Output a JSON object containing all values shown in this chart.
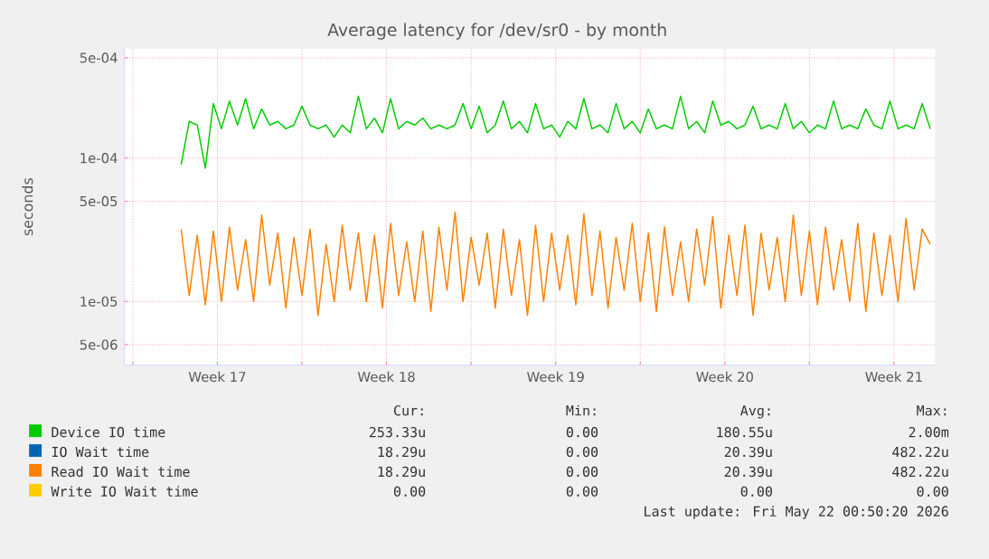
{
  "chart_data": {
    "type": "line",
    "title": "Average latency for /dev/sr0 - by month",
    "ylabel": "seconds",
    "log": "y",
    "grid": true,
    "legend": "bottom",
    "xlim": [
      "2026-04-19T15:36",
      "2026-05-23T04:48"
    ],
    "xticks": [
      {
        "value": "2026-04-20",
        "label": null
      },
      {
        "value": "2026-04-23T12:00",
        "label": "Week 17"
      },
      {
        "value": "2026-04-27",
        "label": null
      },
      {
        "value": "2026-04-30T12:00",
        "label": "Week 18"
      },
      {
        "value": "2026-05-04",
        "label": null
      },
      {
        "value": "2026-05-07T12:00",
        "label": "Week 19"
      },
      {
        "value": "2026-05-11",
        "label": null
      },
      {
        "value": "2026-05-14T12:00",
        "label": "Week 20"
      },
      {
        "value": "2026-05-18",
        "label": null
      },
      {
        "value": "2026-05-21T12:00",
        "label": "Week 21"
      }
    ],
    "ylim": [
      3.6e-06,
      0.00058
    ],
    "yticks": [
      {
        "value": 5e-06,
        "label": "5e-06"
      },
      {
        "value": 1e-05,
        "label": "1e-05"
      },
      {
        "value": 5e-05,
        "label": "5e-05"
      },
      {
        "value": 0.0001,
        "label": "1e-04"
      },
      {
        "value": 0.0005,
        "label": "5e-04"
      }
    ],
    "series": [
      {
        "name": "Device IO time",
        "color": "#00cc00",
        "x": [
          "2026-04-22T00:00",
          "2026-04-22T08:00",
          "2026-04-22T16:00",
          "2026-04-23T00:00",
          "2026-04-23T08:00",
          "2026-04-23T16:00",
          "2026-04-24T00:00",
          "2026-04-24T08:00",
          "2026-04-24T16:00",
          "2026-04-25T00:00",
          "2026-04-25T08:00",
          "2026-04-25T16:00",
          "2026-04-26T00:00",
          "2026-04-26T08:00",
          "2026-04-26T16:00",
          "2026-04-27T00:00",
          "2026-04-27T08:00",
          "2026-04-27T16:00",
          "2026-04-28T00:00",
          "2026-04-28T08:00",
          "2026-04-28T16:00",
          "2026-04-29T00:00",
          "2026-04-29T08:00",
          "2026-04-29T16:00",
          "2026-04-30T00:00",
          "2026-04-30T08:00",
          "2026-04-30T16:00",
          "2026-05-01T00:00",
          "2026-05-01T08:00",
          "2026-05-01T16:00",
          "2026-05-02T00:00",
          "2026-05-02T08:00",
          "2026-05-02T16:00",
          "2026-05-03T00:00",
          "2026-05-03T08:00",
          "2026-05-03T16:00",
          "2026-05-04T00:00",
          "2026-05-04T08:00",
          "2026-05-04T16:00",
          "2026-05-05T00:00",
          "2026-05-05T08:00",
          "2026-05-05T16:00",
          "2026-05-06T00:00",
          "2026-05-06T08:00",
          "2026-05-06T16:00",
          "2026-05-07T00:00",
          "2026-05-07T08:00",
          "2026-05-07T16:00",
          "2026-05-08T00:00",
          "2026-05-08T08:00",
          "2026-05-08T16:00",
          "2026-05-09T00:00",
          "2026-05-09T08:00",
          "2026-05-09T16:00",
          "2026-05-10T00:00",
          "2026-05-10T08:00",
          "2026-05-10T16:00",
          "2026-05-11T00:00",
          "2026-05-11T08:00",
          "2026-05-11T16:00",
          "2026-05-12T00:00",
          "2026-05-12T08:00",
          "2026-05-12T16:00",
          "2026-05-13T00:00",
          "2026-05-13T08:00",
          "2026-05-13T16:00",
          "2026-05-14T00:00",
          "2026-05-14T08:00",
          "2026-05-14T16:00",
          "2026-05-15T00:00",
          "2026-05-15T08:00",
          "2026-05-15T16:00",
          "2026-05-16T00:00",
          "2026-05-16T08:00",
          "2026-05-16T16:00",
          "2026-05-17T00:00",
          "2026-05-17T08:00",
          "2026-05-17T16:00",
          "2026-05-18T00:00",
          "2026-05-18T08:00",
          "2026-05-18T16:00",
          "2026-05-19T00:00",
          "2026-05-19T08:00",
          "2026-05-19T16:00",
          "2026-05-20T00:00",
          "2026-05-20T08:00",
          "2026-05-20T16:00",
          "2026-05-21T00:00",
          "2026-05-21T08:00",
          "2026-05-21T16:00",
          "2026-05-22T00:00",
          "2026-05-22T08:00",
          "2026-05-22T16:00",
          "2026-05-23T00:00"
        ],
        "values": [
          9e-05,
          0.00018,
          0.00017,
          8.5e-05,
          0.00024,
          0.00016,
          0.00025,
          0.00017,
          0.00026,
          0.00016,
          0.00022,
          0.00017,
          0.00018,
          0.00016,
          0.00017,
          0.00023,
          0.00017,
          0.00016,
          0.00017,
          0.00014,
          0.00017,
          0.00015,
          0.00027,
          0.00016,
          0.00019,
          0.00015,
          0.00026,
          0.00016,
          0.00018,
          0.00017,
          0.00019,
          0.00016,
          0.00017,
          0.00016,
          0.00017,
          0.00024,
          0.00016,
          0.00023,
          0.00015,
          0.00017,
          0.00025,
          0.00016,
          0.00018,
          0.00015,
          0.00024,
          0.00016,
          0.00017,
          0.00014,
          0.00018,
          0.00016,
          0.00026,
          0.00016,
          0.00017,
          0.00015,
          0.00024,
          0.00016,
          0.00018,
          0.00015,
          0.00022,
          0.00016,
          0.00017,
          0.00016,
          0.00027,
          0.00016,
          0.00018,
          0.00015,
          0.00025,
          0.00017,
          0.00018,
          0.00016,
          0.00017,
          0.00023,
          0.00016,
          0.00017,
          0.00016,
          0.00024,
          0.00016,
          0.00018,
          0.00015,
          0.00017,
          0.00016,
          0.00025,
          0.00016,
          0.00017,
          0.00016,
          0.00022,
          0.00017,
          0.00016,
          0.00025,
          0.00016,
          0.00017,
          0.00016,
          0.00024,
          0.00016
        ]
      },
      {
        "name": "IO Wait time",
        "color": "#0066b3",
        "values": [
          null
        ]
      },
      {
        "name": "Read IO Wait time",
        "color": "#ff8000",
        "x": [
          "2026-04-22T00:00",
          "2026-04-22T08:00",
          "2026-04-22T16:00",
          "2026-04-23T00:00",
          "2026-04-23T08:00",
          "2026-04-23T16:00",
          "2026-04-24T00:00",
          "2026-04-24T08:00",
          "2026-04-24T16:00",
          "2026-04-25T00:00",
          "2026-04-25T08:00",
          "2026-04-25T16:00",
          "2026-04-26T00:00",
          "2026-04-26T08:00",
          "2026-04-26T16:00",
          "2026-04-27T00:00",
          "2026-04-27T08:00",
          "2026-04-27T16:00",
          "2026-04-28T00:00",
          "2026-04-28T08:00",
          "2026-04-28T16:00",
          "2026-04-29T00:00",
          "2026-04-29T08:00",
          "2026-04-29T16:00",
          "2026-04-30T00:00",
          "2026-04-30T08:00",
          "2026-04-30T16:00",
          "2026-05-01T00:00",
          "2026-05-01T08:00",
          "2026-05-01T16:00",
          "2026-05-02T00:00",
          "2026-05-02T08:00",
          "2026-05-02T16:00",
          "2026-05-03T00:00",
          "2026-05-03T08:00",
          "2026-05-03T16:00",
          "2026-05-04T00:00",
          "2026-05-04T08:00",
          "2026-05-04T16:00",
          "2026-05-05T00:00",
          "2026-05-05T08:00",
          "2026-05-05T16:00",
          "2026-05-06T00:00",
          "2026-05-06T08:00",
          "2026-05-06T16:00",
          "2026-05-07T00:00",
          "2026-05-07T08:00",
          "2026-05-07T16:00",
          "2026-05-08T00:00",
          "2026-05-08T08:00",
          "2026-05-08T16:00",
          "2026-05-09T00:00",
          "2026-05-09T08:00",
          "2026-05-09T16:00",
          "2026-05-10T00:00",
          "2026-05-10T08:00",
          "2026-05-10T16:00",
          "2026-05-11T00:00",
          "2026-05-11T08:00",
          "2026-05-11T16:00",
          "2026-05-12T00:00",
          "2026-05-12T08:00",
          "2026-05-12T16:00",
          "2026-05-13T00:00",
          "2026-05-13T08:00",
          "2026-05-13T16:00",
          "2026-05-14T00:00",
          "2026-05-14T08:00",
          "2026-05-14T16:00",
          "2026-05-15T00:00",
          "2026-05-15T08:00",
          "2026-05-15T16:00",
          "2026-05-16T00:00",
          "2026-05-16T08:00",
          "2026-05-16T16:00",
          "2026-05-17T00:00",
          "2026-05-17T08:00",
          "2026-05-17T16:00",
          "2026-05-18T00:00",
          "2026-05-18T08:00",
          "2026-05-18T16:00",
          "2026-05-19T00:00",
          "2026-05-19T08:00",
          "2026-05-19T16:00",
          "2026-05-20T00:00",
          "2026-05-20T08:00",
          "2026-05-20T16:00",
          "2026-05-21T00:00",
          "2026-05-21T08:00",
          "2026-05-21T16:00",
          "2026-05-22T00:00",
          "2026-05-22T08:00",
          "2026-05-22T16:00",
          "2026-05-23T00:00"
        ],
        "values": [
          3.2e-05,
          1.1e-05,
          2.9e-05,
          9.5e-06,
          3.1e-05,
          1e-05,
          3.3e-05,
          1.2e-05,
          2.7e-05,
          1e-05,
          4e-05,
          1.3e-05,
          3e-05,
          9e-06,
          2.8e-05,
          1.1e-05,
          3.2e-05,
          8e-06,
          2.5e-05,
          1e-05,
          3.4e-05,
          1.2e-05,
          3e-05,
          1e-05,
          2.9e-05,
          9e-06,
          3.5e-05,
          1.1e-05,
          2.6e-05,
          1e-05,
          3.1e-05,
          8.5e-06,
          3.3e-05,
          1.2e-05,
          4.2e-05,
          1e-05,
          2.8e-05,
          1.3e-05,
          3e-05,
          9e-06,
          3.2e-05,
          1.1e-05,
          2.7e-05,
          8e-06,
          3.4e-05,
          1e-05,
          3e-05,
          1.2e-05,
          2.9e-05,
          9.5e-06,
          4.1e-05,
          1.1e-05,
          3.1e-05,
          9e-06,
          2.8e-05,
          1.2e-05,
          3.5e-05,
          1e-05,
          3e-05,
          8.5e-06,
          3.3e-05,
          1.1e-05,
          2.6e-05,
          1e-05,
          3.2e-05,
          1.3e-05,
          3.9e-05,
          9e-06,
          2.9e-05,
          1.1e-05,
          3.4e-05,
          8e-06,
          3e-05,
          1.2e-05,
          2.8e-05,
          1e-05,
          4e-05,
          1.1e-05,
          3.1e-05,
          9.5e-06,
          3.3e-05,
          1.2e-05,
          2.7e-05,
          1e-05,
          3.5e-05,
          8.5e-06,
          3e-05,
          1.1e-05,
          2.9e-05,
          1e-05,
          3.8e-05,
          1.2e-05,
          3.2e-05,
          2.5e-05
        ]
      },
      {
        "name": "Write IO Wait time",
        "color": "#ffcc00",
        "values": [
          null
        ]
      }
    ],
    "annotations": [
      "Cur:",
      "Min:",
      "Avg:",
      "Max:",
      "253.33u",
      "0.00",
      "180.55u",
      "2.00m",
      "18.29u",
      "0.00",
      "20.39u",
      "482.22u",
      "18.29u",
      "0.00",
      "20.39u",
      "482.22u",
      "0.00",
      "0.00",
      "0.00",
      "0.00",
      "Last update: Fri May 22 00:50:20 2026"
    ]
  }
}
